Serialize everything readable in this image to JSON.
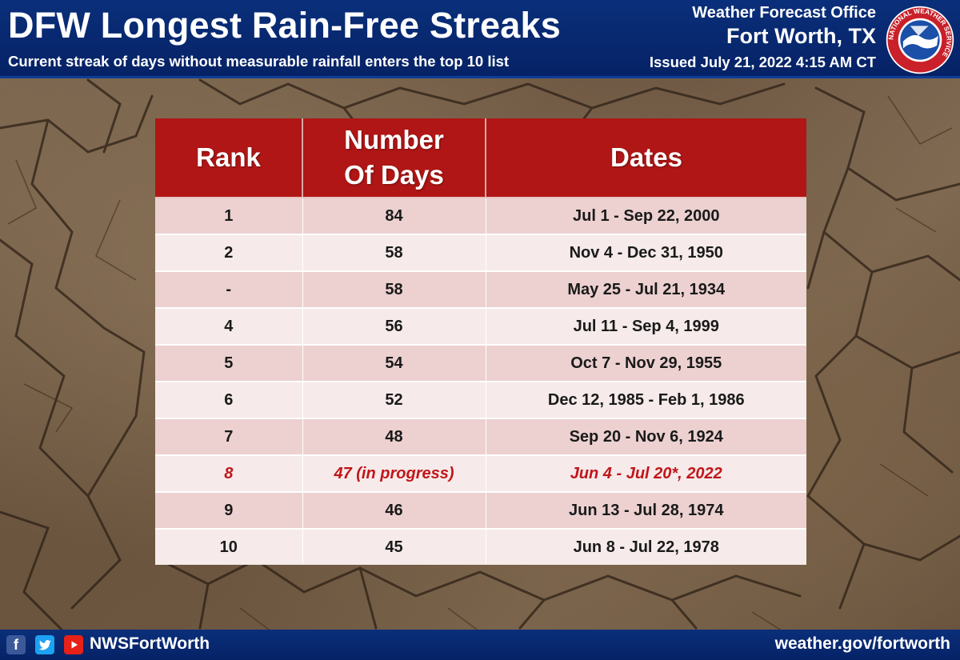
{
  "header": {
    "title": "DFW Longest Rain-Free Streaks",
    "subtitle": "Current streak of days without measurable rainfall enters the top 10 list",
    "office_line1": "Weather Forecast Office",
    "office_line2": "Fort Worth, TX",
    "issued": "Issued July 21, 2022 4:15 AM CT",
    "logo_icon": "nws-logo-icon",
    "logo_text": "NATIONAL WEATHER SERVICE"
  },
  "chart_data": {
    "type": "table",
    "columns": [
      "Rank",
      "Number\nOf Days",
      "Dates"
    ],
    "rows": [
      {
        "rank": "1",
        "days": "84",
        "dates": "Jul 1 - Sep 22, 2000",
        "highlight": false
      },
      {
        "rank": "2",
        "days": "58",
        "dates": "Nov 4 - Dec 31, 1950",
        "highlight": false
      },
      {
        "rank": "-",
        "days": "58",
        "dates": "May 25 - Jul 21, 1934",
        "highlight": false
      },
      {
        "rank": "4",
        "days": "56",
        "dates": "Jul 11 - Sep 4, 1999",
        "highlight": false
      },
      {
        "rank": "5",
        "days": "54",
        "dates": "Oct 7 - Nov 29, 1955",
        "highlight": false
      },
      {
        "rank": "6",
        "days": "52",
        "dates": "Dec 12, 1985 - Feb 1, 1986",
        "highlight": false
      },
      {
        "rank": "7",
        "days": "48",
        "dates": "Sep 20 - Nov 6, 1924",
        "highlight": false
      },
      {
        "rank": "8",
        "days": "47 (in progress)",
        "dates": "Jun 4 - Jul 20*, 2022",
        "highlight": true
      },
      {
        "rank": "9",
        "days": "46",
        "dates": "Jun 13 - Jul 28, 1974",
        "highlight": false
      },
      {
        "rank": "10",
        "days": "45",
        "dates": "Jun 8 - Jul 22, 1978",
        "highlight": false
      }
    ],
    "header_color": "#b01615",
    "highlight_color": "#c0161a"
  },
  "footer": {
    "icons": [
      "facebook-icon",
      "twitter-icon",
      "youtube-icon"
    ],
    "handle": "NWSFortWorth",
    "website": "weather.gov/fortworth"
  }
}
